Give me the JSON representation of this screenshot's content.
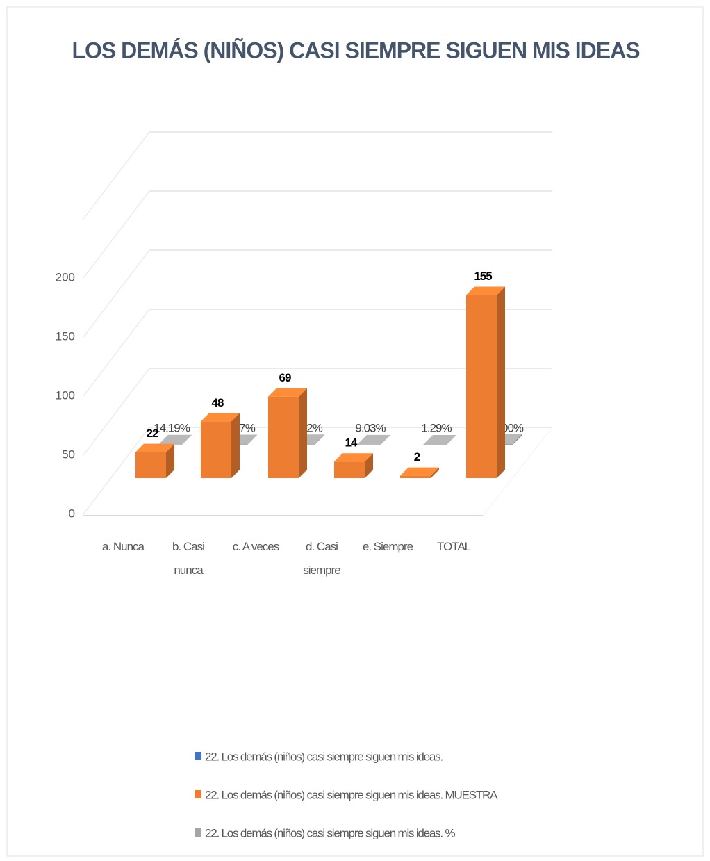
{
  "chart_data": {
    "type": "bar3d",
    "title": "LOS DEMÁS (NIÑOS) CASI SIEMPRE SIGUEN MIS IDEAS",
    "categories": [
      "a. Nunca",
      "b. Casi nunca",
      "c. A veces",
      "d. Casi siempre",
      "e. Siempre",
      "TOTAL"
    ],
    "series": [
      {
        "name": "22.  Los demás (niños) casi siempre siguen mis ideas.",
        "color": "#4472c4",
        "values": [
          null,
          null,
          null,
          null,
          null,
          null
        ]
      },
      {
        "name": "22.  Los demás (niños) casi siempre siguen mis ideas.  MUESTRA",
        "color": "#ed7d31",
        "values": [
          22,
          48,
          69,
          14,
          2,
          155
        ]
      },
      {
        "name": "22.  Los demás (niños) casi siempre siguen mis ideas.  %",
        "color": "#a5a5a5",
        "values": [
          0.1419,
          0.3097,
          0.4452,
          0.0903,
          0.0129,
          1.0
        ],
        "value_labels": [
          "14.19%",
          "30.97%",
          "44.52%",
          "9.03%",
          "1.29%",
          "100.00%"
        ]
      }
    ],
    "ylim": [
      0,
      200
    ],
    "yticks": [
      0,
      50,
      100,
      150,
      200
    ],
    "grid": true,
    "legend": "bottom"
  }
}
